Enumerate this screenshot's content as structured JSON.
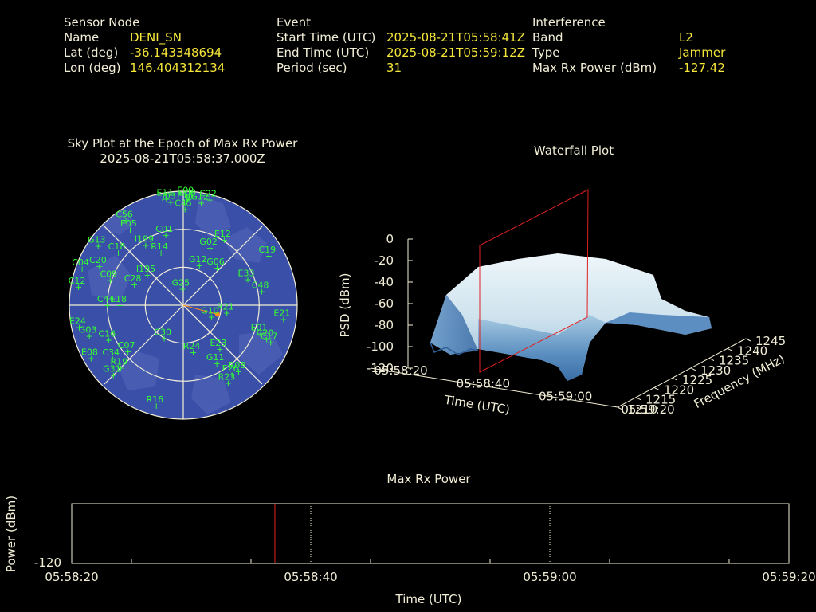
{
  "header": {
    "sensor": {
      "title": "Sensor Node",
      "rows": [
        {
          "label": "Name",
          "value": "DENI_SN"
        },
        {
          "label": "Lat (deg)",
          "value": "-36.143348694"
        },
        {
          "label": "Lon (deg)",
          "value": "146.404312134"
        }
      ]
    },
    "event": {
      "title": "Event",
      "rows": [
        {
          "label": "Start Time (UTC)",
          "value": "2025-08-21T05:58:41Z"
        },
        {
          "label": "End Time (UTC)",
          "value": "2025-08-21T05:59:12Z"
        },
        {
          "label": "Period (sec)",
          "value": "31"
        }
      ]
    },
    "interference": {
      "title": "Interference",
      "rows": [
        {
          "label": "Band",
          "value": "L2"
        },
        {
          "label": "Type",
          "value": "Jammer"
        },
        {
          "label": "Max Rx Power (dBm)",
          "value": "-127.42"
        }
      ]
    }
  },
  "skyplot": {
    "title": "Sky Plot at the Epoch of Max Rx Power",
    "subtitle": "2025-08-21T05:58:37.000Z"
  },
  "waterfall": {
    "title": "Waterfall Plot",
    "zlabel": "PSD (dBm)",
    "xlabel": "Time (UTC)",
    "ylabel": "Frequency (MHz)",
    "z_ticks": [
      "0",
      "-20",
      "-40",
      "-60",
      "-80",
      "-100",
      "-120"
    ],
    "time_ticks": [
      "05:58:20",
      "05:58:40",
      "05:59:00",
      "05:59:20"
    ],
    "freq_ticks": [
      "1210",
      "1215",
      "1220",
      "1225",
      "1230",
      "1235",
      "1240",
      "1245"
    ]
  },
  "power": {
    "title": "Max Rx Power",
    "ylabel": "Power (dBm)",
    "xlabel": "Time (UTC)",
    "y_tick": "-120",
    "x_ticks": [
      "05:58:20",
      "05:58:40",
      "05:59:00",
      "05:59:20"
    ]
  },
  "chart_data": [
    {
      "type": "scatter",
      "name": "sky-plot",
      "title": "Sky Plot at the Epoch of Max Rx Power",
      "subtitle": "2025-08-21T05:58:37.000Z",
      "axes": {
        "azimuth_deg": [
          0,
          360
        ],
        "elevation_deg": [
          0,
          90
        ]
      },
      "grid": true,
      "marker_color": "#33ff33",
      "satellites": [
        {
          "id": "E11",
          "az": 351,
          "el": 5
        },
        {
          "id": "E09",
          "az": 2,
          "el": 4
        },
        {
          "id": "C22",
          "az": 14,
          "el": 4
        },
        {
          "id": "C08",
          "az": 3,
          "el": 6
        },
        {
          "id": "J03",
          "az": 353,
          "el": 8
        },
        {
          "id": "E16",
          "az": 2,
          "el": 8
        },
        {
          "id": "G12",
          "az": 10,
          "el": 8
        },
        {
          "id": "C45",
          "az": 1,
          "el": 14
        },
        {
          "id": "C56",
          "az": 326,
          "el": 9
        },
        {
          "id": "E05",
          "az": 325,
          "el": 17
        },
        {
          "id": "G13",
          "az": 305,
          "el": 8
        },
        {
          "id": "C18",
          "az": 309,
          "el": 24
        },
        {
          "id": "I199",
          "az": 328,
          "el": 34
        },
        {
          "id": "C01",
          "az": 346,
          "el": 33
        },
        {
          "id": "G02",
          "az": 25,
          "el": 40
        },
        {
          "id": "E12",
          "az": 32,
          "el": 29
        },
        {
          "id": "R14",
          "az": 337,
          "el": 45
        },
        {
          "id": "I195",
          "az": 310,
          "el": 53
        },
        {
          "id": "G12b",
          "az": 22,
          "el": 56
        },
        {
          "id": "G25",
          "az": 357,
          "el": 77
        },
        {
          "id": "C19",
          "az": 60,
          "el": 12
        },
        {
          "id": "C20",
          "az": 295,
          "el": 17
        },
        {
          "id": "C04",
          "az": 290,
          "el": 5
        },
        {
          "id": "C12",
          "az": 280,
          "el": 6
        },
        {
          "id": "C09",
          "az": 289,
          "el": 29
        },
        {
          "id": "C28",
          "az": 293,
          "el": 48
        },
        {
          "id": "E33",
          "az": 68,
          "el": 35
        },
        {
          "id": "G06",
          "az": 42,
          "el": 50
        },
        {
          "id": "C48",
          "az": 80,
          "el": 27
        },
        {
          "id": "G10",
          "az": 112,
          "el": 66
        },
        {
          "id": "R21",
          "az": 100,
          "el": 55
        },
        {
          "id": "E01",
          "az": 110,
          "el": 25
        },
        {
          "id": "E21",
          "az": 98,
          "el": 10
        },
        {
          "id": "C17",
          "az": 113,
          "el": 15
        },
        {
          "id": "C20b",
          "az": 112,
          "el": 19
        },
        {
          "id": "C44",
          "az": 270,
          "el": 30
        },
        {
          "id": "E18",
          "az": 270,
          "el": 40
        },
        {
          "id": "E24",
          "az": 258,
          "el": 6
        },
        {
          "id": "G03",
          "az": 252,
          "el": 12
        },
        {
          "id": "C16",
          "az": 245,
          "el": 25
        },
        {
          "id": "C07",
          "az": 230,
          "el": 33
        },
        {
          "id": "C34",
          "az": 233,
          "el": 20
        },
        {
          "id": "R19",
          "az": 225,
          "el": 20
        },
        {
          "id": "C30",
          "az": 210,
          "el": 60
        },
        {
          "id": "E23",
          "az": 140,
          "el": 45
        },
        {
          "id": "G11",
          "az": 150,
          "el": 37
        },
        {
          "id": "R24",
          "az": 168,
          "el": 52
        },
        {
          "id": "E26",
          "az": 145,
          "el": 23
        },
        {
          "id": "R08",
          "az": 140,
          "el": 22
        },
        {
          "id": "R23",
          "az": 150,
          "el": 19
        },
        {
          "id": "E08",
          "az": 240,
          "el": 6
        },
        {
          "id": "G31",
          "az": 225,
          "el": 12
        },
        {
          "id": "R16",
          "az": 195,
          "el": 8
        }
      ],
      "jammer_bearing": {
        "az": 105,
        "el": 62,
        "color": "#ff8c1a"
      }
    },
    {
      "type": "area",
      "name": "waterfall",
      "title": "Waterfall Plot",
      "xlabel": "Time (UTC)",
      "ylabel": "Frequency (MHz)",
      "zlabel": "PSD (dBm)",
      "x": [
        "05:58:20",
        "05:58:40",
        "05:59:00",
        "05:59:20"
      ],
      "y_range": [
        1210,
        1245
      ],
      "z_range": [
        -120,
        0
      ],
      "series": [
        {
          "values_time": [
            "05:58:20",
            "05:58:40",
            "05:59:00",
            "05:59:20"
          ],
          "peak_psd_dbm": [
            -95,
            -40,
            -42,
            -96
          ]
        }
      ]
    },
    {
      "type": "line",
      "name": "max-rx-power",
      "title": "Max Rx Power",
      "xlabel": "Time (UTC)",
      "ylabel": "Power (dBm)",
      "x": [
        "05:58:20",
        "05:58:40",
        "05:59:00",
        "05:59:20"
      ],
      "y_tick": -120,
      "max_marker_time": "05:58:37"
    }
  ]
}
